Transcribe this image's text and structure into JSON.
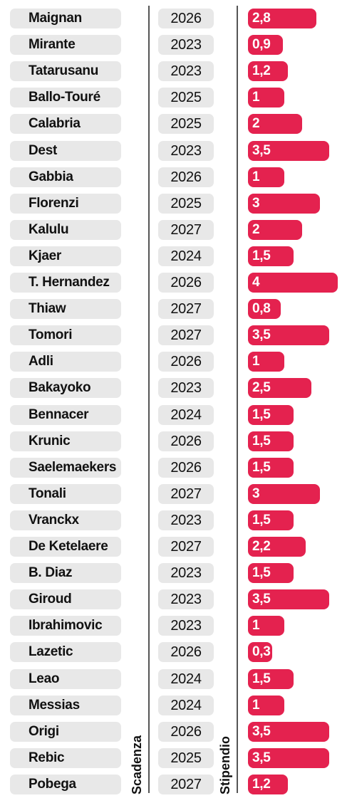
{
  "chart_data": {
    "type": "bar",
    "orientation": "horizontal",
    "columns": {
      "expiry_label": "Scadenza",
      "salary_label": "Stipendio"
    },
    "bar_color": "#e4224f",
    "pill_color": "#e8e8e8",
    "rows": [
      {
        "name": "Maignan",
        "year": "2026",
        "value": 2.8,
        "label": "2,8"
      },
      {
        "name": "Mirante",
        "year": "2023",
        "value": 0.9,
        "label": "0,9"
      },
      {
        "name": "Tatarusanu",
        "year": "2023",
        "value": 1.2,
        "label": "1,2"
      },
      {
        "name": "Ballo-Touré",
        "year": "2025",
        "value": 1,
        "label": "1"
      },
      {
        "name": "Calabria",
        "year": "2025",
        "value": 2,
        "label": "2"
      },
      {
        "name": "Dest",
        "year": "2023",
        "value": 3.5,
        "label": "3,5"
      },
      {
        "name": "Gabbia",
        "year": "2026",
        "value": 1,
        "label": "1"
      },
      {
        "name": "Florenzi",
        "year": "2025",
        "value": 3,
        "label": "3"
      },
      {
        "name": "Kalulu",
        "year": "2027",
        "value": 2,
        "label": "2"
      },
      {
        "name": "Kjaer",
        "year": "2024",
        "value": 1.5,
        "label": "1,5"
      },
      {
        "name": "T. Hernandez",
        "year": "2026",
        "value": 4,
        "label": "4"
      },
      {
        "name": "Thiaw",
        "year": "2027",
        "value": 0.8,
        "label": "0,8"
      },
      {
        "name": "Tomori",
        "year": "2027",
        "value": 3.5,
        "label": "3,5"
      },
      {
        "name": "Adli",
        "year": "2026",
        "value": 1,
        "label": "1"
      },
      {
        "name": "Bakayoko",
        "year": "2023",
        "value": 2.5,
        "label": "2,5"
      },
      {
        "name": "Bennacer",
        "year": "2024",
        "value": 1.5,
        "label": "1,5"
      },
      {
        "name": "Krunic",
        "year": "2026",
        "value": 1.5,
        "label": "1,5"
      },
      {
        "name": "Saelemaekers",
        "year": "2026",
        "value": 1.5,
        "label": "1,5"
      },
      {
        "name": "Tonali",
        "year": "2027",
        "value": 3,
        "label": "3"
      },
      {
        "name": "Vranckx",
        "year": "2023",
        "value": 1.5,
        "label": "1,5"
      },
      {
        "name": "De Ketelaere",
        "year": "2027",
        "value": 2.2,
        "label": "2,2"
      },
      {
        "name": "B. Diaz",
        "year": "2023",
        "value": 1.5,
        "label": "1,5"
      },
      {
        "name": "Giroud",
        "year": "2023",
        "value": 3.5,
        "label": "3,5"
      },
      {
        "name": "Ibrahimovic",
        "year": "2023",
        "value": 1,
        "label": "1"
      },
      {
        "name": "Lazetic",
        "year": "2026",
        "value": 0.3,
        "label": "0,3"
      },
      {
        "name": "Leao",
        "year": "2024",
        "value": 1.5,
        "label": "1,5"
      },
      {
        "name": "Messias",
        "year": "2024",
        "value": 1,
        "label": "1"
      },
      {
        "name": "Origi",
        "year": "2026",
        "value": 3.5,
        "label": "3,5"
      },
      {
        "name": "Rebic",
        "year": "2025",
        "value": 3.5,
        "label": "3,5"
      },
      {
        "name": "Pobega",
        "year": "2027",
        "value": 1.2,
        "label": "1,2"
      }
    ]
  }
}
